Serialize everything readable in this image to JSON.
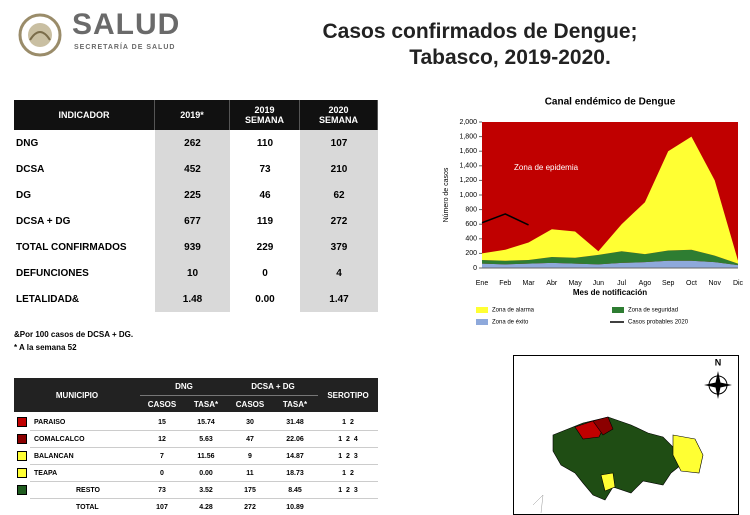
{
  "header": {
    "logo_title": "SALUD",
    "logo_subtitle": "SECRETARÍA DE SALUD",
    "title_line1": "Casos confirmados de Dengue;",
    "title_line2": "Tabasco, 2019-2020."
  },
  "indicators": {
    "columns": [
      "INDICADOR",
      "2019*",
      "2019\nSEMANA",
      "2020\nSEMANA"
    ],
    "rows": [
      [
        "DNG",
        "262",
        "110",
        "107"
      ],
      [
        "DCSA",
        "452",
        "73",
        "210"
      ],
      [
        "DG",
        "225",
        "46",
        "62"
      ],
      [
        "DCSA + DG",
        "677",
        "119",
        "272"
      ],
      [
        "TOTAL CONFIRMADOS",
        "939",
        "229",
        "379"
      ],
      [
        "DEFUNCIONES",
        "10",
        "0",
        "4"
      ],
      [
        "LETALIDAD&",
        "1.48",
        "0.00",
        "1.47"
      ]
    ],
    "notes": [
      "&Por 100 casos de DCSA + DG.",
      "* A la semana 52"
    ]
  },
  "municipios": {
    "header_groups": [
      "MUNICIPIO",
      "DNG",
      "DCSA + DG",
      "SEROTIPO"
    ],
    "subheaders": [
      "CASOS",
      "TASA*",
      "CASOS",
      "TASA*"
    ],
    "rows": [
      {
        "name": "PARAISO",
        "color": "#c00000",
        "cells": [
          "15",
          "15.74",
          "30",
          "31.48",
          "1  2"
        ]
      },
      {
        "name": "COMALCALCO",
        "color": "#8b0000",
        "cells": [
          "12",
          "5.63",
          "47",
          "22.06",
          "1  2  4"
        ]
      },
      {
        "name": "BALANCAN",
        "color": "#ffff33",
        "cells": [
          "7",
          "11.56",
          "9",
          "14.87",
          "1  2  3"
        ]
      },
      {
        "name": "TEAPA",
        "color": "#ffff33",
        "cells": [
          "0",
          "0.00",
          "11",
          "18.73",
          "1  2"
        ]
      },
      {
        "name": "RESTO",
        "color": "#1f5c1f",
        "cells": [
          "73",
          "3.52",
          "175",
          "8.45",
          "1  2  3"
        ]
      }
    ],
    "total": {
      "name": "TOTAL",
      "cells": [
        "107",
        "4.28",
        "272",
        "10.89"
      ]
    }
  },
  "chart": {
    "type": "area",
    "title": "Canal endémico de Dengue",
    "x_label": "Mes de notificación",
    "y_label": "Número de casos",
    "annotation": "Zona de epidemia",
    "epidemic_color": "#c00000",
    "categories": [
      "Ene",
      "Feb",
      "Mar",
      "Abr",
      "May",
      "Jun",
      "Jul",
      "Ago",
      "Sep",
      "Oct",
      "Nov",
      "Dic"
    ],
    "series": [
      {
        "name": "Zona de alarma",
        "color": "#ffff33",
        "values": [
          90,
          150,
          240,
          380,
          360,
          50,
          370,
          710,
          1360,
          1550,
          1030,
          40
        ]
      },
      {
        "name": "Zona de seguridad",
        "color": "#2e7d32",
        "values": [
          50,
          50,
          50,
          80,
          80,
          130,
          160,
          110,
          140,
          150,
          90,
          20
        ]
      },
      {
        "name": "Zona de éxito",
        "color": "#8ea9db",
        "values": [
          60,
          50,
          60,
          70,
          60,
          50,
          70,
          80,
          100,
          100,
          80,
          40
        ]
      },
      {
        "name": "Casos probables 2020",
        "color": "#000000",
        "type": "line",
        "values": [
          620,
          740,
          590,
          null,
          null,
          null,
          null,
          null,
          null,
          null,
          null,
          null
        ]
      }
    ],
    "ylim": [
      0,
      2000
    ],
    "yticks": [
      0,
      200,
      400,
      600,
      800,
      {
        "value": 1000,
        "label": "1,000"
      },
      {
        "value": 1200,
        "label": "1,200"
      },
      {
        "value": 1400,
        "label": "1,400"
      },
      {
        "value": 1600,
        "label": "1,600"
      },
      {
        "value": 1800,
        "label": "1,800"
      },
      {
        "value": 2000,
        "label": "2,000"
      }
    ]
  },
  "map": {
    "north": "N"
  }
}
